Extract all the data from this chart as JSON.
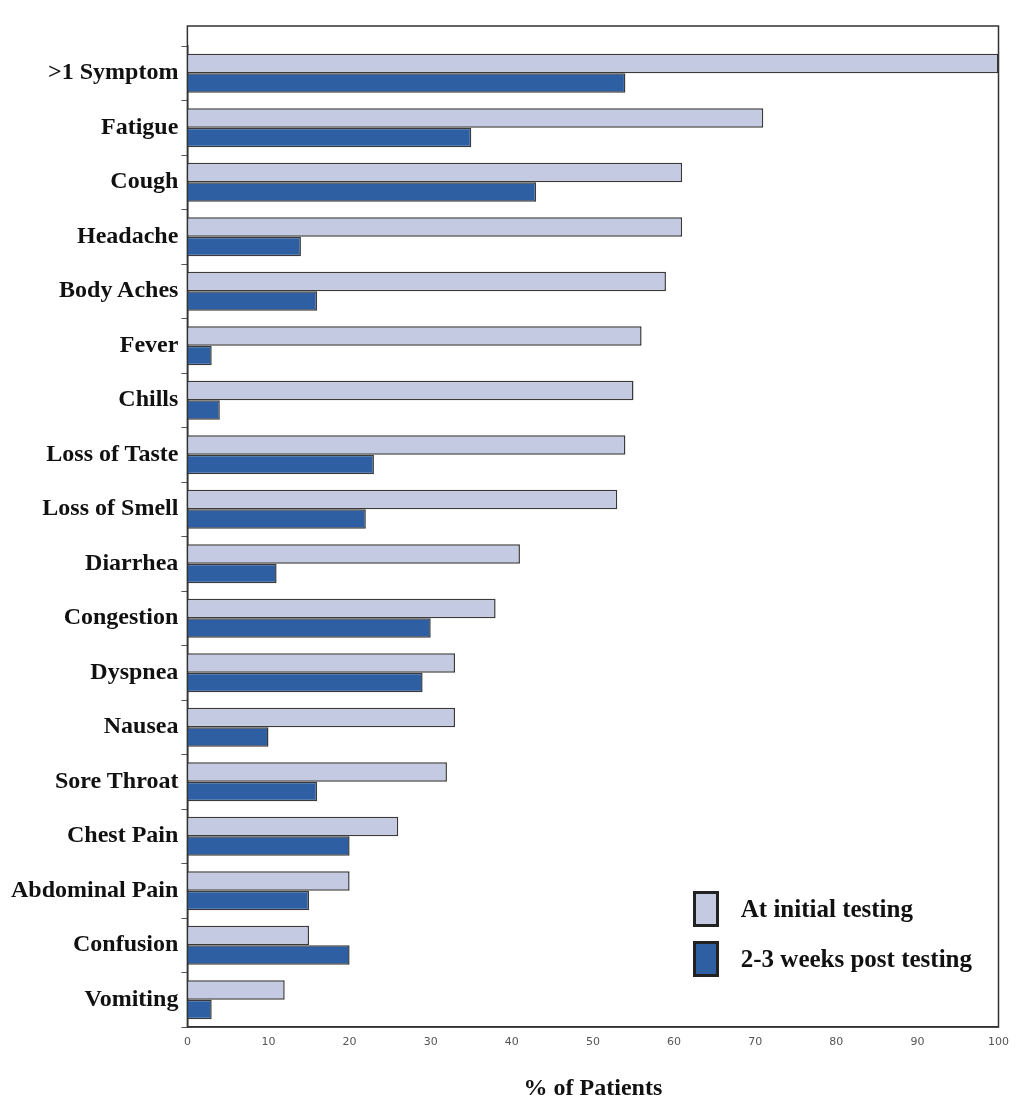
{
  "chart_data": {
    "type": "bar",
    "orientation": "horizontal",
    "xlabel": "% of Patients",
    "categories": [
      ">1 Symptom",
      "Fatigue",
      "Cough",
      "Headache",
      "Body Aches",
      "Fever",
      "Chills",
      "Loss of Taste",
      "Loss of Smell",
      "Diarrhea",
      "Congestion",
      "Dyspnea",
      "Nausea",
      "Sore Throat",
      "Chest Pain",
      "Abdominal Pain",
      "Confusion",
      "Vomiting"
    ],
    "series": [
      {
        "name": "At initial testing",
        "color": "#c5cae3",
        "values": [
          100,
          71,
          61,
          61,
          59,
          56,
          55,
          54,
          53,
          41,
          38,
          33,
          33,
          32,
          26,
          20,
          15,
          12
        ]
      },
      {
        "name": "2-3 weeks post testing",
        "color": "#2e5fa3",
        "values": [
          54,
          35,
          43,
          14,
          16,
          3,
          4,
          23,
          22,
          11,
          30,
          29,
          10,
          16,
          20,
          15,
          20,
          3
        ]
      }
    ],
    "xlim": [
      0,
      100
    ],
    "xticks": [
      0,
      10,
      20,
      30,
      40,
      50,
      60,
      70,
      80,
      90,
      100
    ],
    "grid": false,
    "legend": "bottom right"
  }
}
